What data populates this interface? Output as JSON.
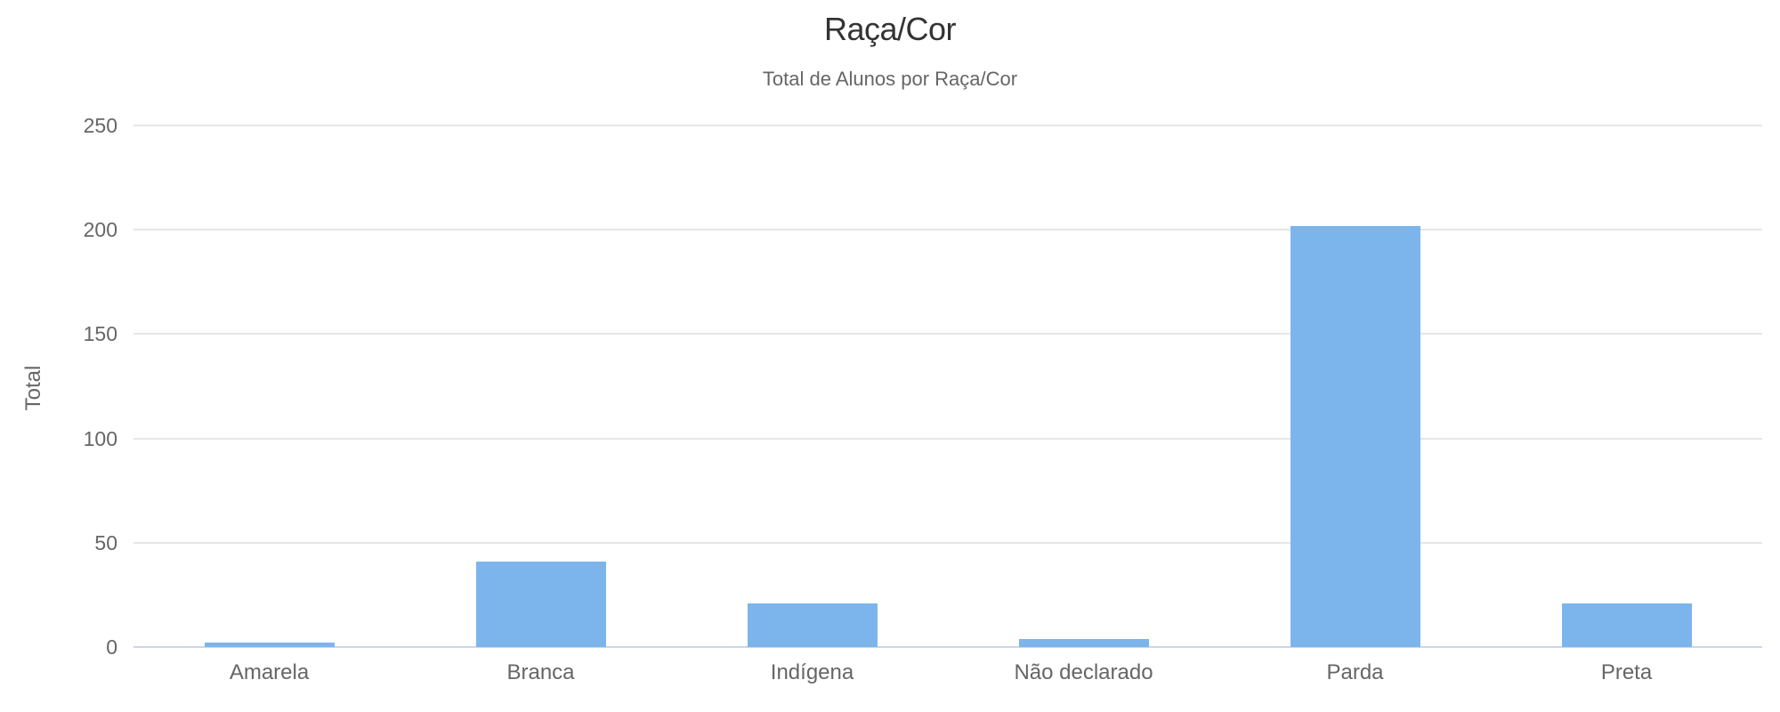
{
  "chart_data": {
    "type": "bar",
    "title": "Raça/Cor",
    "subtitle": "Total de Alunos por Raça/Cor",
    "xlabel": "",
    "ylabel": "Total",
    "categories": [
      "Amarela",
      "Branca",
      "Indígena",
      "Não declarado",
      "Parda",
      "Preta"
    ],
    "values": [
      2,
      41,
      21,
      4,
      202,
      21
    ],
    "ylim": [
      0,
      250
    ],
    "yticks": [
      0,
      50,
      100,
      150,
      200,
      250
    ],
    "grid": true,
    "legend_position": "none",
    "colors": {
      "bar": "#7cb5ec",
      "grid_line": "#e6e6e6",
      "axis_line": "#ccd6eb",
      "title_text": "#333333",
      "subtitle_text": "#666666",
      "axis_text": "#666666",
      "background": "#ffffff"
    }
  }
}
